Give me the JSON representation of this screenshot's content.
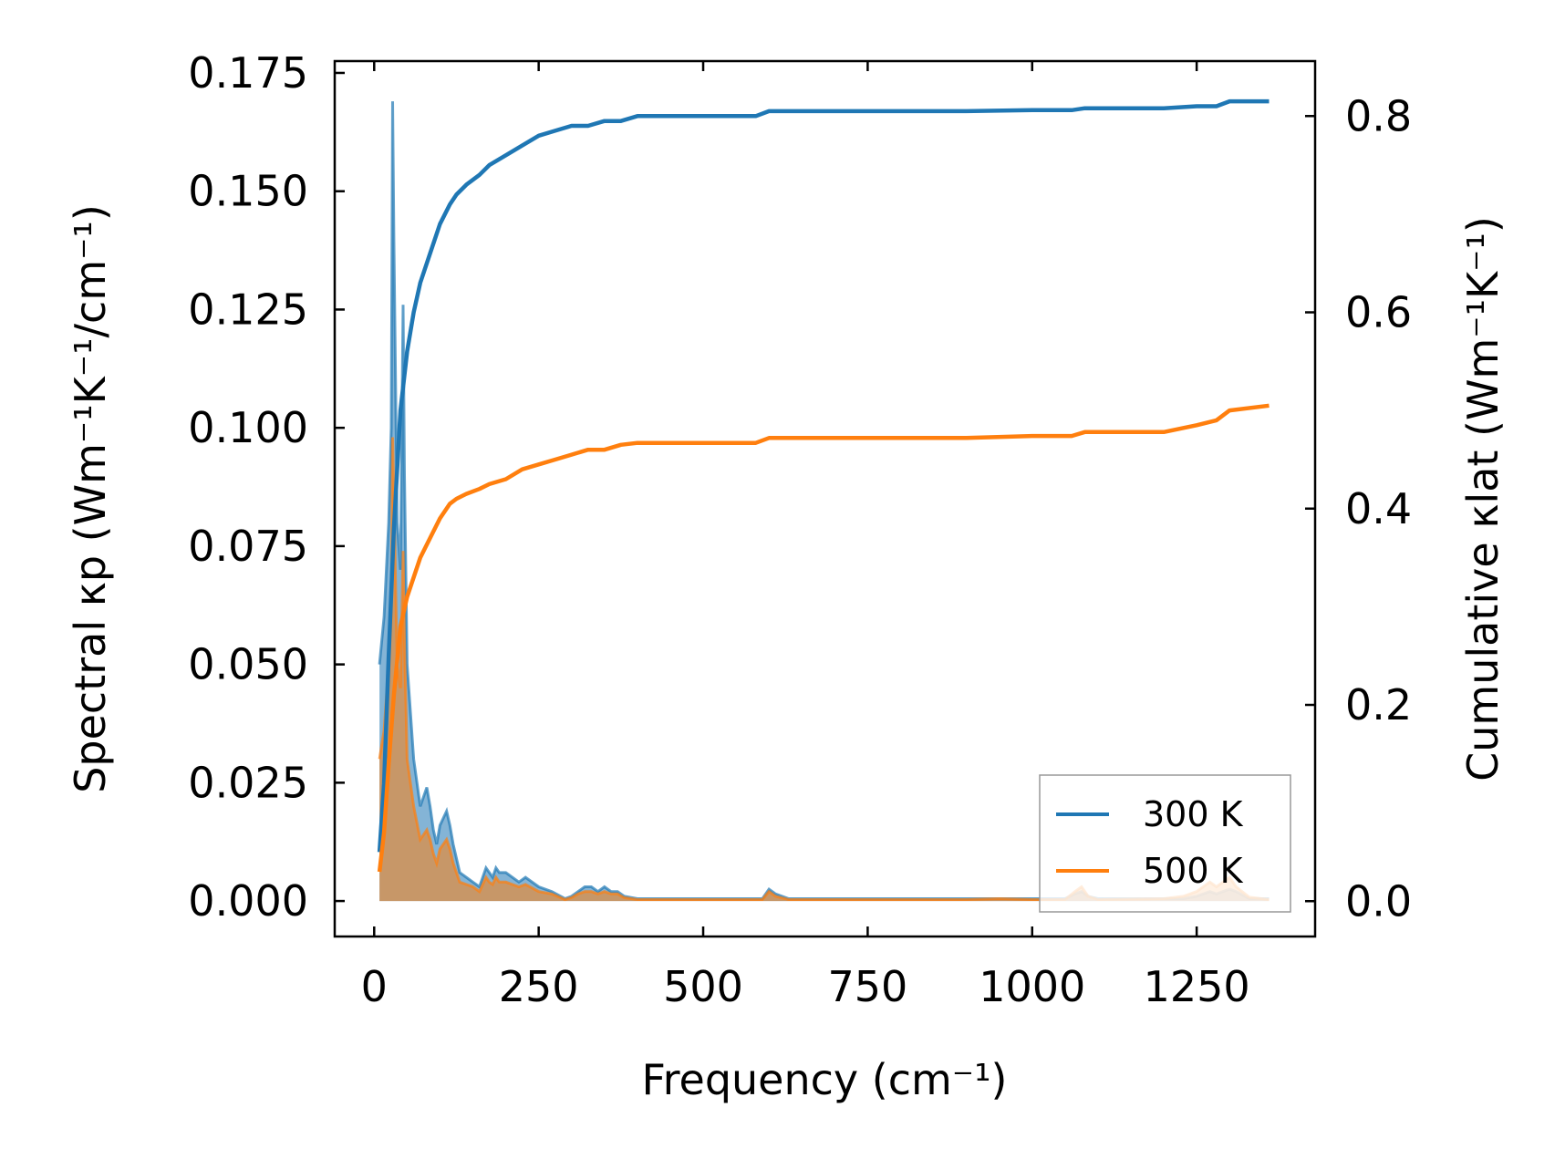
{
  "chart_data": {
    "type": "line",
    "title": "",
    "xlabel": "Frequency (cm⁻¹)",
    "ylabel_left": "Spectral κp (Wm⁻¹K⁻¹/cm⁻¹)",
    "ylabel_right": "Cumulative κlat (Wm⁻¹K⁻¹)",
    "xlim": [
      -60,
      1430
    ],
    "ylim_left": [
      -0.0075,
      0.1775
    ],
    "ylim_right": [
      -0.036,
      0.856
    ],
    "x_ticks": [
      0,
      250,
      500,
      750,
      1000,
      1250
    ],
    "x_tick_labels": [
      "0",
      "250",
      "500",
      "750",
      "1000",
      "1250"
    ],
    "y_left_ticks": [
      0,
      0.025,
      0.05,
      0.075,
      0.1,
      0.125,
      0.15,
      0.175
    ],
    "y_left_tick_labels": [
      "0.000",
      "0.025",
      "0.050",
      "0.075",
      "0.100",
      "0.125",
      "0.150",
      "0.175"
    ],
    "y_right_ticks": [
      0,
      0.2,
      0.4,
      0.6,
      0.8
    ],
    "y_right_tick_labels": [
      "0.0",
      "0.2",
      "0.4",
      "0.6",
      "0.8"
    ],
    "legend": {
      "position": "bottom-right",
      "entries": [
        "300 K",
        "500 K"
      ]
    },
    "colors": {
      "300 K": "#1f77b4",
      "500 K": "#ff7f0e"
    },
    "series": [
      {
        "name": "300 K",
        "axis": "right",
        "kind": "cumulative",
        "x": [
          8,
          15,
          22,
          30,
          40,
          50,
          60,
          70,
          85,
          100,
          115,
          125,
          140,
          160,
          175,
          200,
          225,
          250,
          275,
          300,
          325,
          350,
          375,
          400,
          450,
          500,
          550,
          580,
          600,
          650,
          700,
          800,
          900,
          1000,
          1060,
          1080,
          1100,
          1200,
          1250,
          1280,
          1300,
          1360
        ],
        "values": [
          0.05,
          0.12,
          0.25,
          0.38,
          0.5,
          0.56,
          0.6,
          0.63,
          0.66,
          0.69,
          0.71,
          0.72,
          0.73,
          0.74,
          0.75,
          0.76,
          0.77,
          0.78,
          0.785,
          0.79,
          0.79,
          0.795,
          0.795,
          0.8,
          0.8,
          0.8,
          0.8,
          0.8,
          0.805,
          0.805,
          0.805,
          0.805,
          0.805,
          0.806,
          0.806,
          0.808,
          0.808,
          0.808,
          0.81,
          0.81,
          0.815,
          0.815
        ]
      },
      {
        "name": "500 K",
        "axis": "right",
        "kind": "cumulative",
        "x": [
          8,
          15,
          22,
          30,
          40,
          50,
          60,
          70,
          85,
          100,
          115,
          125,
          140,
          160,
          175,
          200,
          225,
          250,
          275,
          300,
          325,
          350,
          375,
          400,
          450,
          500,
          550,
          580,
          600,
          650,
          700,
          800,
          900,
          1000,
          1060,
          1080,
          1100,
          1200,
          1250,
          1280,
          1300,
          1360
        ],
        "values": [
          0.03,
          0.07,
          0.14,
          0.21,
          0.28,
          0.31,
          0.33,
          0.35,
          0.37,
          0.39,
          0.405,
          0.41,
          0.415,
          0.42,
          0.425,
          0.43,
          0.44,
          0.445,
          0.45,
          0.455,
          0.46,
          0.46,
          0.465,
          0.467,
          0.467,
          0.467,
          0.467,
          0.467,
          0.472,
          0.472,
          0.472,
          0.472,
          0.472,
          0.474,
          0.474,
          0.478,
          0.478,
          0.478,
          0.485,
          0.49,
          0.5,
          0.505
        ]
      },
      {
        "name": "300 K",
        "axis": "left",
        "kind": "spectral",
        "x": [
          8,
          15,
          22,
          26,
          28,
          30,
          35,
          40,
          44,
          46,
          50,
          55,
          60,
          70,
          80,
          85,
          90,
          95,
          100,
          110,
          115,
          120,
          130,
          140,
          150,
          160,
          170,
          175,
          180,
          185,
          190,
          200,
          210,
          220,
          230,
          250,
          270,
          290,
          300,
          310,
          320,
          330,
          340,
          350,
          360,
          370,
          380,
          400,
          450,
          500,
          560,
          590,
          600,
          610,
          630,
          700,
          800,
          900,
          950,
          1000,
          1050,
          1065,
          1075,
          1085,
          1100,
          1200,
          1230,
          1250,
          1260,
          1270,
          1280,
          1290,
          1300,
          1310,
          1330,
          1360
        ],
        "values": [
          0.05,
          0.06,
          0.08,
          0.1,
          0.169,
          0.14,
          0.08,
          0.07,
          0.126,
          0.09,
          0.05,
          0.04,
          0.03,
          0.02,
          0.024,
          0.02,
          0.015,
          0.012,
          0.016,
          0.019,
          0.016,
          0.012,
          0.006,
          0.005,
          0.004,
          0.003,
          0.007,
          0.006,
          0.005,
          0.007,
          0.006,
          0.006,
          0.005,
          0.004,
          0.005,
          0.003,
          0.002,
          0.0005,
          0.001,
          0.002,
          0.003,
          0.003,
          0.002,
          0.003,
          0.002,
          0.002,
          0.001,
          0.0005,
          0.0005,
          0.0005,
          0.0005,
          0.0005,
          0.0025,
          0.0015,
          0.0005,
          0.0005,
          0.0005,
          0.0005,
          0.0005,
          0.0005,
          0.0005,
          0.0015,
          0.002,
          0.001,
          0.0005,
          0.0005,
          0.0005,
          0.001,
          0.0015,
          0.002,
          0.0015,
          0.002,
          0.0025,
          0.002,
          0.0005,
          0.0005
        ]
      },
      {
        "name": "500 K",
        "axis": "left",
        "kind": "spectral",
        "x": [
          8,
          15,
          22,
          26,
          28,
          30,
          35,
          40,
          44,
          46,
          50,
          55,
          60,
          70,
          80,
          85,
          90,
          95,
          100,
          110,
          115,
          120,
          130,
          140,
          150,
          160,
          170,
          175,
          180,
          185,
          190,
          200,
          210,
          220,
          230,
          250,
          270,
          290,
          300,
          310,
          320,
          330,
          340,
          350,
          360,
          370,
          380,
          400,
          450,
          500,
          560,
          590,
          600,
          610,
          630,
          700,
          800,
          900,
          950,
          1000,
          1050,
          1065,
          1075,
          1085,
          1100,
          1200,
          1230,
          1250,
          1260,
          1270,
          1280,
          1290,
          1300,
          1310,
          1330,
          1360
        ],
        "values": [
          0.03,
          0.036,
          0.05,
          0.06,
          0.098,
          0.085,
          0.05,
          0.045,
          0.074,
          0.055,
          0.03,
          0.025,
          0.02,
          0.013,
          0.015,
          0.013,
          0.01,
          0.008,
          0.011,
          0.013,
          0.011,
          0.008,
          0.004,
          0.0035,
          0.003,
          0.002,
          0.005,
          0.004,
          0.0035,
          0.005,
          0.004,
          0.004,
          0.0035,
          0.003,
          0.0035,
          0.002,
          0.0015,
          0.0003,
          0.0007,
          0.0015,
          0.002,
          0.002,
          0.0015,
          0.002,
          0.0015,
          0.0015,
          0.0007,
          0.0003,
          0.0003,
          0.0003,
          0.0003,
          0.0003,
          0.002,
          0.001,
          0.0003,
          0.0003,
          0.0003,
          0.0003,
          0.0005,
          0.0003,
          0.0003,
          0.002,
          0.003,
          0.001,
          0.0003,
          0.0005,
          0.001,
          0.002,
          0.003,
          0.004,
          0.003,
          0.004,
          0.005,
          0.003,
          0.0008,
          0.0003
        ]
      }
    ]
  }
}
